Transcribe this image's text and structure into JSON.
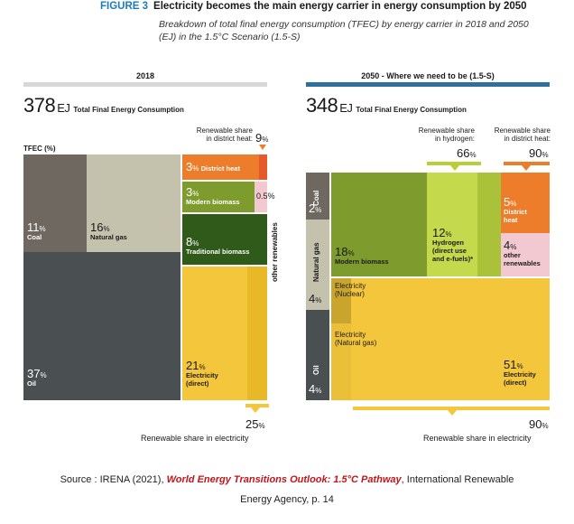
{
  "figure": {
    "label": "FIGURE 3",
    "title": "Electricity becomes the main energy carrier in energy consumption by 2050",
    "subtitle": "Breakdown of total final energy consumption (TFEC) by energy carrier in 2018 and 2050 (EJ) in the 1.5°C Scenario (1.5-S)"
  },
  "colors": {
    "coal": "#6e6860",
    "natural_gas": "#c4c1ad",
    "oil": "#4a4f52",
    "district_heat": "#ee7d2b",
    "modern_biomass": "#7e9b2e",
    "traditional_biomass": "#2f5a19",
    "other_renewables": "#f3c9d1",
    "electricity": "#f4c63c",
    "hydrogen": "#b8cf3a",
    "header_2018": "#d8d8d8",
    "header_2050": "#2e6f9e"
  },
  "chart_data": [
    {
      "type": "treemap",
      "panel_title": "2018",
      "total_value": "378",
      "total_unit": "EJ",
      "total_label": "Total Final Energy Consumption",
      "axis_label": "TFEC (%)",
      "side_label": "other renewables",
      "segments": [
        {
          "name": "Coal",
          "value": 11
        },
        {
          "name": "Natural gas",
          "value": 16
        },
        {
          "name": "Oil",
          "value": 37
        },
        {
          "name": "District heat",
          "value": 3
        },
        {
          "name": "Modern biomass",
          "value": 3
        },
        {
          "name": "other renewables",
          "value": 0.5
        },
        {
          "name": "Traditional biomass",
          "value": 8
        },
        {
          "name": "Electricity (direct)",
          "value": 21
        }
      ],
      "renewable_shares": [
        {
          "label": "Renewable share in district heat:",
          "value": 9
        },
        {
          "label": "Renewable share in electricity",
          "value": 25
        }
      ]
    },
    {
      "type": "treemap",
      "panel_title": "2050 - Where we need to be (1.5-S)",
      "total_value": "348",
      "total_unit": "EJ",
      "total_label": "Total Final Energy Consumption",
      "segments": [
        {
          "name": "Coal",
          "value": 2
        },
        {
          "name": "Natural gas",
          "value": 4
        },
        {
          "name": "Oil",
          "value": 4
        },
        {
          "name": "Modern biomass",
          "value": 18
        },
        {
          "name": "Hydrogen (direct use and e-fuels)*",
          "value": 12
        },
        {
          "name": "District heat",
          "value": 5
        },
        {
          "name": "other renewables",
          "value": 4
        },
        {
          "name": "Electricity (direct)",
          "value": 51
        },
        {
          "name": "Electricity (Nuclear)",
          "value": null
        },
        {
          "name": "Electricity (Natural gas)",
          "value": null
        }
      ],
      "renewable_shares": [
        {
          "label": "Renewable share in hydrogen:",
          "value": 66
        },
        {
          "label": "Renewable share in district heat:",
          "value": 90
        },
        {
          "label": "Renewable share in electricity",
          "value": 90
        }
      ]
    }
  ],
  "text": {
    "y2018": {
      "coal_pct": "11",
      "coal": "Coal",
      "gas_pct": "16",
      "gas": "Natural gas",
      "oil_pct": "37",
      "oil": "Oil",
      "dh_pct": "3",
      "dh": "District heat",
      "mb_pct": "3",
      "mb": "Modern biomass",
      "or_pct": "0.5%",
      "tb_pct": "8",
      "tb": "Traditional biomass",
      "el_pct": "21",
      "el": "Electricity",
      "el2": "(direct)",
      "dh_share_l1": "Renewable share",
      "dh_share_l2": "in district heat:",
      "dh_share": "9",
      "el_share": "25",
      "el_share_label": "Renewable share in electricity"
    },
    "y2050": {
      "coal_pct": "2",
      "coal": "Coal",
      "gas_pct": "4",
      "gas": "Natural gas",
      "oil_pct": "4",
      "oil": "Oil",
      "mb_pct": "18",
      "mb": "Modern biomass",
      "h2_pct": "12",
      "h2_l1": "Hydrogen",
      "h2_l2": "(direct use",
      "h2_l3": "and e-fuels)*",
      "dh_pct": "5",
      "dh_l1": "District",
      "dh_l2": "heat",
      "or_pct": "4",
      "or_l1": "other",
      "or_l2": "renewables",
      "nuc_l1": "Electricity",
      "nuc_l2": "(Nuclear)",
      "ng_l1": "Electricity",
      "ng_l2": "(Natural gas)",
      "el_pct": "51",
      "el": "Electricity",
      "el2": "(direct)",
      "h2_share_l1": "Renewable share",
      "h2_share_l2": "in hydrogen:",
      "h2_share": "66",
      "dh_share_l1": "Renewable share",
      "dh_share_l2": "in district heat:",
      "dh_share": "90",
      "el_share": "90",
      "el_share_label": "Renewable share in electricity"
    },
    "pct_sign": "%"
  },
  "source": {
    "prefix": "Source : IRENA (2021), ",
    "title": "World Energy Transitions Outlook: 1.5°C Pathway",
    "suffix": ", International Renewable",
    "line2": "Energy Agency, p. 14"
  }
}
